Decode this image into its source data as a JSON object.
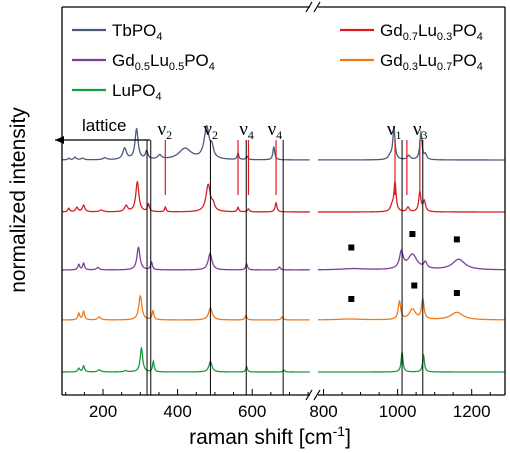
{
  "chart_data": {
    "type": "line",
    "xlabel": "raman shift [cm",
    "xlabel_sup": "-1",
    "xlabel_close": "]",
    "ylabel": "normalized intensity",
    "x_break": [
      755,
      785
    ],
    "xlim_left": [
      90,
      755
    ],
    "xlim_right": [
      785,
      1290
    ],
    "xticks": [
      200,
      400,
      600,
      800,
      1000,
      1200
    ],
    "grid": false,
    "legend_placement": "top",
    "series": [
      {
        "name": "TbPO",
        "sub": "4",
        "color": "#4a5a78",
        "offset": 4,
        "peaks": [
          [
            108,
            0.05,
            3
          ],
          [
            125,
            0.08,
            4
          ],
          [
            145,
            0.05,
            5
          ],
          [
            205,
            0.06,
            6
          ],
          [
            258,
            0.35,
            6
          ],
          [
            290,
            0.95,
            5
          ],
          [
            317,
            0.25,
            4
          ],
          [
            352,
            0.13,
            6
          ],
          [
            420,
            0.35,
            20
          ],
          [
            478,
            1.0,
            8
          ],
          [
            492,
            0.3,
            5
          ],
          [
            562,
            0.2,
            2.5
          ],
          [
            586,
            0.1,
            3
          ],
          [
            658,
            0.4,
            3
          ],
          [
            980,
            0.12,
            6
          ],
          [
            990,
            1.0,
            3.5
          ],
          [
            1030,
            0.13,
            5
          ],
          [
            1063,
            0.85,
            3.5
          ],
          [
            1075,
            0.15,
            4
          ]
        ]
      },
      {
        "name": "Gd",
        "sub": "0.7",
        "name2": "Lu",
        "sub2": "0.3",
        "name3": "PO",
        "sub3": "4",
        "color": "#d81e22",
        "offset": 3,
        "peaks": [
          [
            108,
            0.12,
            3
          ],
          [
            130,
            0.15,
            4
          ],
          [
            148,
            0.22,
            4
          ],
          [
            195,
            0.06,
            6
          ],
          [
            262,
            0.2,
            5
          ],
          [
            292,
            1.0,
            5
          ],
          [
            322,
            0.25,
            3
          ],
          [
            367,
            0.16,
            2.5
          ],
          [
            482,
            0.9,
            7
          ],
          [
            495,
            0.2,
            5
          ],
          [
            562,
            0.15,
            2.5
          ],
          [
            590,
            0.1,
            3
          ],
          [
            664,
            0.3,
            3
          ],
          [
            985,
            0.18,
            5
          ],
          [
            993,
            0.95,
            3.5
          ],
          [
            1028,
            0.15,
            4
          ],
          [
            1060,
            0.65,
            3.5
          ],
          [
            1072,
            0.35,
            4
          ]
        ]
      },
      {
        "name": "Gd",
        "sub": "0.5",
        "name2": "Lu",
        "sub2": "0.5",
        "name3": "PO",
        "sub3": "4",
        "color": "#7b3fa0",
        "offset": 2,
        "peaks": [
          [
            135,
            0.18,
            3
          ],
          [
            148,
            0.22,
            3
          ],
          [
            186,
            0.08,
            5
          ],
          [
            295,
            0.75,
            5
          ],
          [
            330,
            0.25,
            3
          ],
          [
            487,
            0.55,
            6
          ],
          [
            585,
            0.2,
            3
          ],
          [
            673,
            0.1,
            3
          ],
          [
            880,
            0.04,
            40
          ],
          [
            1010,
            0.55,
            6
          ],
          [
            1040,
            0.5,
            15
          ],
          [
            1075,
            0.2,
            5
          ],
          [
            1165,
            0.35,
            20
          ]
        ]
      },
      {
        "name": "",
        "color": "#f07a1a",
        "offset": 1,
        "peaks": [
          [
            135,
            0.22,
            3
          ],
          [
            148,
            0.28,
            3
          ],
          [
            190,
            0.1,
            5
          ],
          [
            300,
            0.8,
            5
          ],
          [
            334,
            0.3,
            3
          ],
          [
            488,
            0.4,
            6
          ],
          [
            583,
            0.15,
            3
          ],
          [
            680,
            0.1,
            3
          ],
          [
            870,
            0.03,
            40
          ],
          [
            1005,
            0.6,
            4
          ],
          [
            1040,
            0.35,
            10
          ],
          [
            1068,
            0.65,
            4
          ],
          [
            1160,
            0.25,
            20
          ]
        ]
      },
      {
        "name": "LuPO",
        "sub": "4",
        "color": "#1a9a46",
        "offset": 0,
        "peaks": [
          [
            135,
            0.12,
            3
          ],
          [
            148,
            0.2,
            3
          ],
          [
            190,
            0.07,
            5
          ],
          [
            260,
            0.04,
            5
          ],
          [
            303,
            0.8,
            4
          ],
          [
            335,
            0.35,
            2.5
          ],
          [
            488,
            0.35,
            5
          ],
          [
            585,
            0.18,
            2.5
          ],
          [
            685,
            0.06,
            3
          ],
          [
            1012,
            0.65,
            3
          ],
          [
            1070,
            0.55,
            3
          ]
        ]
      }
    ],
    "legend_extra": {
      "name": "Gd",
      "sub": "0.3",
      "name2": "Lu",
      "sub2": "0.7",
      "name3": "PO",
      "sub3": "4"
    },
    "vlines": [
      318,
      328,
      488,
      584,
      683,
      1012,
      1068
    ],
    "red_vlines": [
      367,
      562,
      590,
      664,
      993,
      1025,
      1060
    ],
    "annotations": {
      "lattice": "lattice",
      "nu": "ν",
      "nu_labels": [
        {
          "x": 365,
          "sub": "2"
        },
        {
          "x": 488,
          "sub": "2"
        },
        {
          "x": 584,
          "sub": "4"
        },
        {
          "x": 660,
          "sub": "4"
        },
        {
          "x": 990,
          "sub": "1"
        },
        {
          "x": 1060,
          "sub": "3"
        }
      ]
    },
    "markers": [
      {
        "x": 875,
        "series": 2,
        "dy": 0.15
      },
      {
        "x": 1040,
        "series": 2,
        "dy": 0.6
      },
      {
        "x": 1160,
        "series": 2,
        "dy": 0.42
      },
      {
        "x": 875,
        "series": 3,
        "dy": 0.1
      },
      {
        "x": 1045,
        "series": 3,
        "dy": 0.55
      },
      {
        "x": 1160,
        "series": 3,
        "dy": 0.3
      }
    ]
  }
}
